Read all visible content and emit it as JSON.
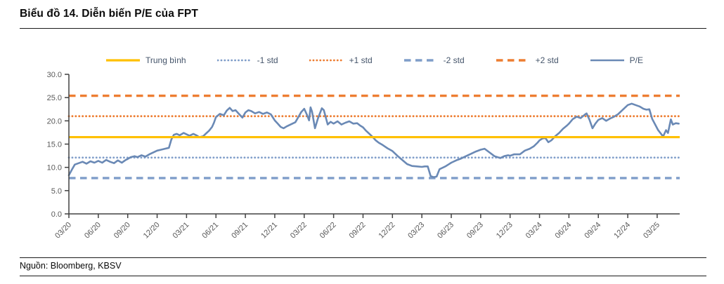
{
  "header": {
    "title": "Biểu đồ 14. Diễn biến P/E của FPT"
  },
  "footer": {
    "source": "Nguồn: Bloomberg, KBSV"
  },
  "colors": {
    "mean": "#FFC000",
    "std_orange": "#ED7D31",
    "std_blue": "#7F9DC9",
    "pe_line": "#6A89B5",
    "axis": "#404040",
    "tick_label": "#595959",
    "legend_text": "#44546A"
  },
  "chart_data": {
    "type": "line",
    "title": "Biểu đồ 14. Diễn biến P/E của FPT",
    "xlabel": "",
    "ylabel": "",
    "ylim": [
      0,
      30
    ],
    "y_tick_labels": [
      "0.0",
      "5.0",
      "10.0",
      "15.0",
      "20.0",
      "25.0",
      "30.0"
    ],
    "x_unit": "months since 2020-03",
    "xlim_months": [
      0,
      62.3
    ],
    "x_tick_interval_months": 3,
    "x_tick_labels": [
      "03/20",
      "06/20",
      "09/20",
      "12/20",
      "03/21",
      "06/21",
      "09/21",
      "12/21",
      "03/22",
      "06/22",
      "09/22",
      "12/22",
      "03/23",
      "06/23",
      "09/23",
      "12/23",
      "03/24",
      "06/24",
      "09/24",
      "12/24",
      "03/25"
    ],
    "grid": false,
    "legend_position": "top",
    "legend": [
      {
        "id": "mean",
        "label": "Trung bình",
        "style": "solid",
        "color": "#FFC000",
        "width": 3.2
      },
      {
        "id": "minus-1-std",
        "label": "-1 std",
        "style": "dotted",
        "color": "#7F9DC9",
        "width": 2.8
      },
      {
        "id": "plus-1-std",
        "label": "+1 std",
        "style": "dotted",
        "color": "#ED7D31",
        "width": 2.8
      },
      {
        "id": "minus-2-std",
        "label": "-2 std",
        "style": "dashed",
        "color": "#7F9DC9",
        "width": 3.4
      },
      {
        "id": "plus-2-std",
        "label": "+2 std",
        "style": "dashed",
        "color": "#ED7D31",
        "width": 3.4
      },
      {
        "id": "pe",
        "label": "P/E",
        "style": "solid",
        "color": "#6A89B5",
        "width": 2.6
      }
    ],
    "reference_lines": [
      {
        "id": "plus-2-std",
        "label": "+2 std",
        "value": 25.4,
        "style": "dashed",
        "color": "#ED7D31",
        "width": 3.4
      },
      {
        "id": "plus-1-std",
        "label": "+1 std",
        "value": 21.0,
        "style": "dotted",
        "color": "#ED7D31",
        "width": 2.8
      },
      {
        "id": "mean",
        "label": "Trung bình",
        "value": 16.5,
        "style": "solid",
        "color": "#FFC000",
        "width": 3.2
      },
      {
        "id": "minus-1-std",
        "label": "-1 std",
        "value": 12.1,
        "style": "dotted",
        "color": "#7F9DC9",
        "width": 2.8
      },
      {
        "id": "minus-2-std",
        "label": "-2 std",
        "value": 7.7,
        "style": "dashed",
        "color": "#7F9DC9",
        "width": 3.4
      }
    ],
    "series": [
      {
        "name": "P/E",
        "color": "#6A89B5",
        "width": 2.6,
        "points": [
          [
            0,
            8.3
          ],
          [
            0.3,
            9.5
          ],
          [
            0.6,
            10.6
          ],
          [
            1,
            10.9
          ],
          [
            1.4,
            11.2
          ],
          [
            1.8,
            10.8
          ],
          [
            2.2,
            11.3
          ],
          [
            2.6,
            11
          ],
          [
            3,
            11.4
          ],
          [
            3.4,
            11
          ],
          [
            3.8,
            11.6
          ],
          [
            4.2,
            11.2
          ],
          [
            4.6,
            10.9
          ],
          [
            5,
            11.5
          ],
          [
            5.4,
            11
          ],
          [
            5.8,
            11.6
          ],
          [
            6,
            11.8
          ],
          [
            6.3,
            12.2
          ],
          [
            6.7,
            12.4
          ],
          [
            7,
            12.2
          ],
          [
            7.4,
            12.6
          ],
          [
            7.8,
            12.3
          ],
          [
            8.2,
            12.8
          ],
          [
            8.6,
            13.2
          ],
          [
            9,
            13.6
          ],
          [
            9.4,
            13.8
          ],
          [
            9.8,
            14
          ],
          [
            10.2,
            14.2
          ],
          [
            10.45,
            16
          ],
          [
            10.7,
            17
          ],
          [
            11,
            17.2
          ],
          [
            11.3,
            16.9
          ],
          [
            11.7,
            17.4
          ],
          [
            12,
            17.1
          ],
          [
            12.3,
            16.8
          ],
          [
            12.7,
            17.2
          ],
          [
            13,
            16.9
          ],
          [
            13.3,
            16.5
          ],
          [
            13.7,
            16.7
          ],
          [
            14,
            17.3
          ],
          [
            14.3,
            17.9
          ],
          [
            14.6,
            18.7
          ],
          [
            14.8,
            19.6
          ],
          [
            15,
            20.8
          ],
          [
            15.4,
            21.5
          ],
          [
            15.8,
            21.2
          ],
          [
            16.1,
            22.2
          ],
          [
            16.4,
            22.8
          ],
          [
            16.7,
            22.1
          ],
          [
            17,
            22.3
          ],
          [
            17.3,
            21.6
          ],
          [
            17.7,
            20.7
          ],
          [
            18,
            21.8
          ],
          [
            18.3,
            22.3
          ],
          [
            18.6,
            22.1
          ],
          [
            19,
            21.6
          ],
          [
            19.4,
            21.9
          ],
          [
            19.8,
            21.5
          ],
          [
            20.2,
            21.8
          ],
          [
            20.6,
            21.4
          ],
          [
            21,
            20.1
          ],
          [
            21.3,
            19.4
          ],
          [
            21.6,
            18.7
          ],
          [
            21.9,
            18.4
          ],
          [
            22.2,
            18.8
          ],
          [
            22.5,
            19.1
          ],
          [
            22.8,
            19.4
          ],
          [
            23.1,
            19.7
          ],
          [
            23.4,
            20.8
          ],
          [
            23.7,
            21.9
          ],
          [
            24,
            22.6
          ],
          [
            24.3,
            21.2
          ],
          [
            24.5,
            20.1
          ],
          [
            24.65,
            22.9
          ],
          [
            24.8,
            22
          ],
          [
            25.1,
            18.4
          ],
          [
            25.4,
            20.5
          ],
          [
            25.8,
            22.7
          ],
          [
            26,
            22.3
          ],
          [
            26.4,
            19.2
          ],
          [
            26.7,
            19.8
          ],
          [
            27,
            19.4
          ],
          [
            27.4,
            19.9
          ],
          [
            27.8,
            19.2
          ],
          [
            28.2,
            19.6
          ],
          [
            28.6,
            19.9
          ],
          [
            29,
            19.4
          ],
          [
            29.4,
            19.5
          ],
          [
            29.7,
            19
          ],
          [
            30,
            18.6
          ],
          [
            30.3,
            17.9
          ],
          [
            30.6,
            17.3
          ],
          [
            31,
            16.5
          ],
          [
            31.3,
            15.8
          ],
          [
            31.6,
            15.3
          ],
          [
            32,
            14.8
          ],
          [
            32.5,
            14.1
          ],
          [
            33,
            13.5
          ],
          [
            33.5,
            12.5
          ],
          [
            34,
            11.6
          ],
          [
            34.5,
            10.7
          ],
          [
            35,
            10.3
          ],
          [
            35.5,
            10.2
          ],
          [
            36,
            10.1
          ],
          [
            36.3,
            10.2
          ],
          [
            36.6,
            10.2
          ],
          [
            36.9,
            8.1
          ],
          [
            37.2,
            7.9
          ],
          [
            37.5,
            8
          ],
          [
            37.8,
            9.6
          ],
          [
            38,
            9.8
          ],
          [
            38.4,
            10.2
          ],
          [
            38.7,
            10.6
          ],
          [
            39,
            11
          ],
          [
            39.6,
            11.6
          ],
          [
            40,
            11.9
          ],
          [
            40.5,
            12.4
          ],
          [
            41,
            12.9
          ],
          [
            41.5,
            13.4
          ],
          [
            42,
            13.8
          ],
          [
            42.4,
            14
          ],
          [
            42.9,
            13.2
          ],
          [
            43.4,
            12.4
          ],
          [
            44,
            12
          ],
          [
            44.4,
            12.4
          ],
          [
            44.8,
            12.6
          ],
          [
            45,
            12.5
          ],
          [
            45.4,
            12.8
          ],
          [
            46,
            12.8
          ],
          [
            46.5,
            13.6
          ],
          [
            47,
            14
          ],
          [
            47.4,
            14.5
          ],
          [
            47.8,
            15.3
          ],
          [
            48,
            15.8
          ],
          [
            48.3,
            16.2
          ],
          [
            48.6,
            16.3
          ],
          [
            48.9,
            15.4
          ],
          [
            49.2,
            15.8
          ],
          [
            49.6,
            16.7
          ],
          [
            50,
            17.4
          ],
          [
            50.4,
            18.3
          ],
          [
            50.8,
            19
          ],
          [
            51,
            19.4
          ],
          [
            51.4,
            20.4
          ],
          [
            51.8,
            20.9
          ],
          [
            52.2,
            20.6
          ],
          [
            52.6,
            21.3
          ],
          [
            52.8,
            21.6
          ],
          [
            53.1,
            20.2
          ],
          [
            53.4,
            18.4
          ],
          [
            53.7,
            19.4
          ],
          [
            54,
            20.2
          ],
          [
            54.4,
            20.6
          ],
          [
            54.8,
            20
          ],
          [
            55.2,
            20.5
          ],
          [
            55.6,
            20.9
          ],
          [
            56,
            21.4
          ],
          [
            56.4,
            22.2
          ],
          [
            56.8,
            23
          ],
          [
            57,
            23.4
          ],
          [
            57.4,
            23.7
          ],
          [
            57.8,
            23.4
          ],
          [
            58.2,
            23.1
          ],
          [
            58.6,
            22.6
          ],
          [
            58.9,
            22.4
          ],
          [
            59.2,
            22.5
          ],
          [
            59.5,
            20.4
          ],
          [
            59.8,
            19.2
          ],
          [
            60.1,
            18
          ],
          [
            60.4,
            17.2
          ],
          [
            60.6,
            16.6
          ],
          [
            60.9,
            18
          ],
          [
            61.1,
            17.4
          ],
          [
            61.4,
            20.3
          ],
          [
            61.6,
            19.2
          ],
          [
            61.9,
            19.5
          ],
          [
            62.2,
            19.4
          ]
        ]
      }
    ]
  }
}
